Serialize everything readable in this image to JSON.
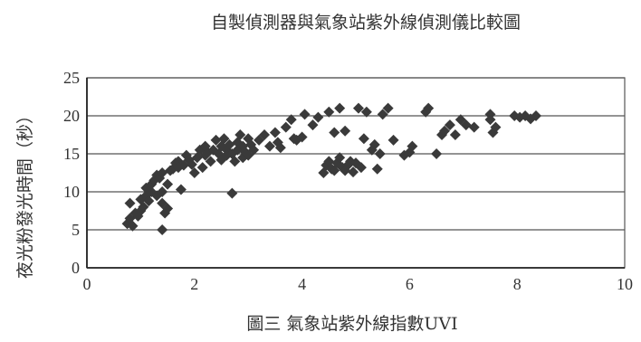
{
  "chart_data": {
    "type": "scatter",
    "title": "自製偵測器與氣象站紫外線偵測儀比較圖",
    "caption": "圖三 氣象站紫外線指數UVI",
    "xlabel": "",
    "ylabel": "夜光粉發光時間（秒）",
    "xlim": [
      0,
      10
    ],
    "ylim": [
      0,
      25
    ],
    "x_ticks": [
      "0",
      "2",
      "4",
      "6",
      "8",
      "10"
    ],
    "y_ticks": [
      "0",
      "5",
      "10",
      "15",
      "20",
      "25"
    ],
    "grid": "horizontal",
    "marker": "diamond",
    "marker_color": "#3a3a3a",
    "series": [
      {
        "points": [
          [
            0.75,
            5.8
          ],
          [
            0.8,
            6.5
          ],
          [
            0.8,
            8.5
          ],
          [
            0.85,
            5.5
          ],
          [
            0.9,
            7.2
          ],
          [
            0.95,
            6.8
          ],
          [
            1.0,
            7.5
          ],
          [
            1.0,
            9.0
          ],
          [
            1.05,
            8.0
          ],
          [
            1.1,
            9.5
          ],
          [
            1.1,
            10.5
          ],
          [
            1.15,
            8.8
          ],
          [
            1.2,
            11.0
          ],
          [
            1.2,
            10.0
          ],
          [
            1.25,
            11.5
          ],
          [
            1.3,
            12.2
          ],
          [
            1.3,
            9.5
          ],
          [
            1.35,
            11.8
          ],
          [
            1.4,
            10.0
          ],
          [
            1.4,
            12.5
          ],
          [
            1.4,
            8.5
          ],
          [
            1.4,
            5.0
          ],
          [
            1.45,
            7.2
          ],
          [
            1.5,
            7.8
          ],
          [
            1.5,
            11.0
          ],
          [
            1.55,
            12.8
          ],
          [
            1.6,
            13.0
          ],
          [
            1.65,
            13.8
          ],
          [
            1.7,
            14.0
          ],
          [
            1.7,
            13.2
          ],
          [
            1.75,
            10.3
          ],
          [
            1.8,
            13.5
          ],
          [
            1.85,
            14.8
          ],
          [
            1.9,
            14.2
          ],
          [
            1.95,
            13.6
          ],
          [
            2.0,
            12.5
          ],
          [
            2.05,
            14.5
          ],
          [
            2.1,
            15.5
          ],
          [
            2.15,
            13.2
          ],
          [
            2.2,
            14.8
          ],
          [
            2.2,
            16.0
          ],
          [
            2.25,
            15.2
          ],
          [
            2.3,
            14.0
          ],
          [
            2.35,
            15.5
          ],
          [
            2.4,
            16.8
          ],
          [
            2.45,
            15.0
          ],
          [
            2.5,
            14.2
          ],
          [
            2.5,
            16.0
          ],
          [
            2.55,
            17.0
          ],
          [
            2.6,
            15.5
          ],
          [
            2.6,
            14.8
          ],
          [
            2.65,
            16.2
          ],
          [
            2.7,
            9.8
          ],
          [
            2.7,
            15.0
          ],
          [
            2.75,
            14.0
          ],
          [
            2.8,
            16.5
          ],
          [
            2.8,
            15.5
          ],
          [
            2.85,
            17.5
          ],
          [
            2.9,
            16.0
          ],
          [
            2.9,
            14.5
          ],
          [
            2.95,
            15.2
          ],
          [
            3.0,
            17.0
          ],
          [
            3.0,
            14.8
          ],
          [
            3.05,
            16.2
          ],
          [
            3.1,
            15.5
          ],
          [
            3.2,
            16.8
          ],
          [
            3.3,
            17.5
          ],
          [
            3.4,
            16.0
          ],
          [
            3.5,
            17.8
          ],
          [
            3.55,
            16.5
          ],
          [
            3.6,
            15.8
          ],
          [
            3.7,
            18.5
          ],
          [
            3.8,
            19.5
          ],
          [
            3.85,
            17.0
          ],
          [
            3.9,
            16.8
          ],
          [
            4.0,
            17.2
          ],
          [
            4.05,
            20.2
          ],
          [
            4.2,
            18.8
          ],
          [
            4.3,
            19.8
          ],
          [
            4.4,
            12.5
          ],
          [
            4.45,
            13.5
          ],
          [
            4.5,
            14.0
          ],
          [
            4.5,
            20.5
          ],
          [
            4.55,
            13.0
          ],
          [
            4.6,
            12.8
          ],
          [
            4.6,
            17.8
          ],
          [
            4.65,
            13.8
          ],
          [
            4.7,
            21.0
          ],
          [
            4.7,
            14.5
          ],
          [
            4.75,
            13.2
          ],
          [
            4.8,
            18.0
          ],
          [
            4.8,
            12.8
          ],
          [
            4.85,
            13.5
          ],
          [
            4.9,
            14.0
          ],
          [
            4.95,
            12.6
          ],
          [
            5.0,
            13.8
          ],
          [
            5.05,
            21.0
          ],
          [
            5.1,
            13.2
          ],
          [
            5.15,
            17.0
          ],
          [
            5.2,
            20.5
          ],
          [
            5.3,
            15.5
          ],
          [
            5.35,
            16.2
          ],
          [
            5.4,
            13.0
          ],
          [
            5.45,
            15.0
          ],
          [
            5.5,
            20.2
          ],
          [
            5.6,
            21.0
          ],
          [
            5.7,
            16.8
          ],
          [
            5.9,
            14.8
          ],
          [
            6.0,
            15.2
          ],
          [
            6.05,
            16.0
          ],
          [
            6.3,
            20.5
          ],
          [
            6.35,
            21.0
          ],
          [
            6.5,
            15.0
          ],
          [
            6.6,
            17.5
          ],
          [
            6.65,
            18.0
          ],
          [
            6.75,
            18.8
          ],
          [
            6.85,
            17.5
          ],
          [
            6.95,
            19.5
          ],
          [
            7.05,
            18.8
          ],
          [
            7.2,
            18.5
          ],
          [
            7.5,
            19.5
          ],
          [
            7.5,
            20.2
          ],
          [
            7.55,
            17.8
          ],
          [
            7.6,
            18.5
          ],
          [
            7.95,
            20.0
          ],
          [
            8.05,
            19.8
          ],
          [
            8.15,
            20.0
          ],
          [
            8.25,
            19.6
          ],
          [
            8.35,
            20.0
          ]
        ]
      }
    ]
  }
}
